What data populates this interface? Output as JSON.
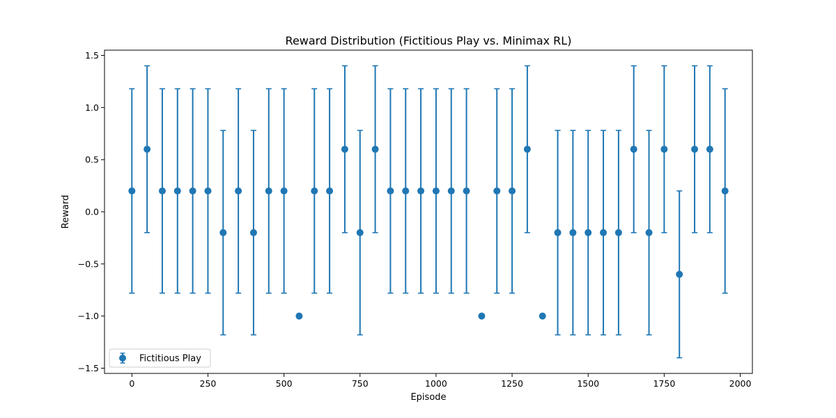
{
  "chart_data": {
    "type": "scatter",
    "title": "Reward Distribution (Fictitious Play vs. Minimax RL)",
    "xlabel": "Episode",
    "ylabel": "Reward",
    "xlim": [
      -90,
      2040
    ],
    "ylim": [
      -1.55,
      1.55
    ],
    "xticks": [
      0,
      250,
      500,
      750,
      1000,
      1250,
      1500,
      1750,
      2000
    ],
    "xtick_labels": [
      "0",
      "250",
      "500",
      "750",
      "1000",
      "1250",
      "1500",
      "1750",
      "2000"
    ],
    "yticks": [
      -1.5,
      -1.0,
      -0.5,
      0.0,
      0.5,
      1.0,
      1.5
    ],
    "ytick_labels": [
      "−1.5",
      "−1.0",
      "−0.5",
      "0.0",
      "0.5",
      "1.0",
      "1.5"
    ],
    "grid": false,
    "legend": {
      "placement": "lower-left",
      "entries": [
        "Fictitious Play"
      ]
    },
    "series": [
      {
        "name": "Fictitious Play",
        "color": "#1f77b4",
        "marker": "circle",
        "error_bars": true,
        "points": [
          {
            "x": 0,
            "y": 0.2,
            "err": 0.98
          },
          {
            "x": 50,
            "y": 0.6,
            "err": 0.8
          },
          {
            "x": 100,
            "y": 0.2,
            "err": 0.98
          },
          {
            "x": 150,
            "y": 0.2,
            "err": 0.98
          },
          {
            "x": 200,
            "y": 0.2,
            "err": 0.98
          },
          {
            "x": 250,
            "y": 0.2,
            "err": 0.98
          },
          {
            "x": 300,
            "y": -0.2,
            "err": 0.98
          },
          {
            "x": 350,
            "y": 0.2,
            "err": 0.98
          },
          {
            "x": 400,
            "y": -0.2,
            "err": 0.98
          },
          {
            "x": 450,
            "y": 0.2,
            "err": 0.98
          },
          {
            "x": 500,
            "y": 0.2,
            "err": 0.98
          },
          {
            "x": 550,
            "y": -1.0,
            "err": 0
          },
          {
            "x": 600,
            "y": 0.2,
            "err": 0.98
          },
          {
            "x": 650,
            "y": 0.2,
            "err": 0.98
          },
          {
            "x": 700,
            "y": 0.6,
            "err": 0.8
          },
          {
            "x": 750,
            "y": -0.2,
            "err": 0.98
          },
          {
            "x": 800,
            "y": 0.6,
            "err": 0.8
          },
          {
            "x": 850,
            "y": 0.2,
            "err": 0.98
          },
          {
            "x": 900,
            "y": 0.2,
            "err": 0.98
          },
          {
            "x": 950,
            "y": 0.2,
            "err": 0.98
          },
          {
            "x": 1000,
            "y": 0.2,
            "err": 0.98
          },
          {
            "x": 1050,
            "y": 0.2,
            "err": 0.98
          },
          {
            "x": 1100,
            "y": 0.2,
            "err": 0.98
          },
          {
            "x": 1150,
            "y": -1.0,
            "err": 0
          },
          {
            "x": 1200,
            "y": 0.2,
            "err": 0.98
          },
          {
            "x": 1250,
            "y": 0.2,
            "err": 0.98
          },
          {
            "x": 1300,
            "y": 0.6,
            "err": 0.8
          },
          {
            "x": 1350,
            "y": -1.0,
            "err": 0
          },
          {
            "x": 1400,
            "y": -0.2,
            "err": 0.98
          },
          {
            "x": 1450,
            "y": -0.2,
            "err": 0.98
          },
          {
            "x": 1500,
            "y": -0.2,
            "err": 0.98
          },
          {
            "x": 1550,
            "y": -0.2,
            "err": 0.98
          },
          {
            "x": 1600,
            "y": -0.2,
            "err": 0.98
          },
          {
            "x": 1650,
            "y": 0.6,
            "err": 0.8
          },
          {
            "x": 1700,
            "y": -0.2,
            "err": 0.98
          },
          {
            "x": 1750,
            "y": 0.6,
            "err": 0.8
          },
          {
            "x": 1800,
            "y": -0.6,
            "err": 0.8
          },
          {
            "x": 1850,
            "y": 0.6,
            "err": 0.8
          },
          {
            "x": 1900,
            "y": 0.6,
            "err": 0.8
          },
          {
            "x": 1950,
            "y": 0.2,
            "err": 0.98
          }
        ]
      }
    ]
  }
}
